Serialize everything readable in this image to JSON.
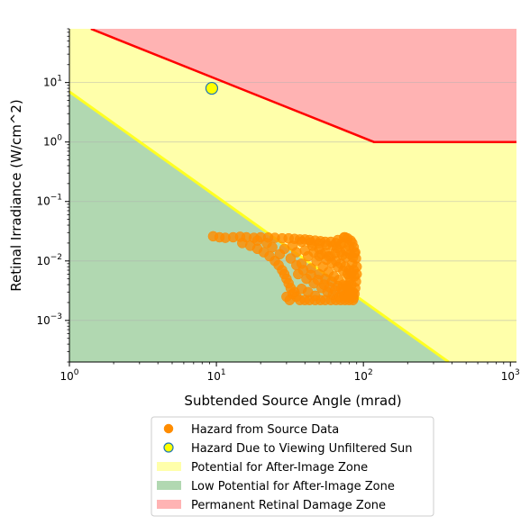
{
  "chart_data": {
    "type": "scatter",
    "title": "",
    "xlabel": "Subtended Source Angle (mrad)",
    "ylabel": "Retinal Irradiance (W/cm^2)",
    "xscale": "log",
    "yscale": "log",
    "xlim": [
      1,
      1100
    ],
    "ylim": [
      0.0002,
      80
    ],
    "grid": "horizontal",
    "legend_position": "bottom-center",
    "x_ticks": [
      {
        "value": 1,
        "base": "10",
        "exp": "0"
      },
      {
        "value": 10,
        "base": "10",
        "exp": "1"
      },
      {
        "value": 100,
        "base": "10",
        "exp": "2"
      },
      {
        "value": 1000,
        "base": "10",
        "exp": "3"
      }
    ],
    "y_ticks": [
      {
        "value": 0.001,
        "base": "10",
        "exp": "−3"
      },
      {
        "value": 0.01,
        "base": "10",
        "exp": "−2"
      },
      {
        "value": 0.1,
        "base": "10",
        "exp": "−1"
      },
      {
        "value": 1,
        "base": "10",
        "exp": "0"
      },
      {
        "value": 10,
        "base": "10",
        "exp": "1"
      }
    ],
    "zones": [
      {
        "name": "Potential for After-Image Zone",
        "color": "#ffffaa",
        "region": "everything"
      },
      {
        "name": "Low Potential for After-Image Zone",
        "color": "#b1d8b1",
        "region": "below-boundary"
      },
      {
        "name": "Permanent Retinal Damage Zone",
        "color": "#ffb3b3",
        "region": "above-damage-line"
      }
    ],
    "boundary_line": {
      "color": "#ffff22",
      "points": [
        [
          1,
          7
        ],
        [
          380,
          0.0002
        ]
      ]
    },
    "damage_line": {
      "color": "#ff0000",
      "points": [
        [
          1.4,
          80
        ],
        [
          118,
          1
        ],
        [
          1100,
          1
        ]
      ]
    },
    "series": [
      {
        "name": "Hazard from Source Data",
        "marker_color": "#ff8c00",
        "marker_edge": "#ff8c00",
        "points": [
          [
            9.5,
            0.026
          ],
          [
            10.5,
            0.025
          ],
          [
            11.5,
            0.0245
          ],
          [
            13,
            0.025
          ],
          [
            14.5,
            0.0255
          ],
          [
            16,
            0.025
          ],
          [
            18,
            0.0245
          ],
          [
            20,
            0.025
          ],
          [
            22.5,
            0.0248
          ],
          [
            25,
            0.0245
          ],
          [
            28,
            0.024
          ],
          [
            31,
            0.024
          ],
          [
            34,
            0.0235
          ],
          [
            37,
            0.023
          ],
          [
            40,
            0.023
          ],
          [
            43,
            0.0225
          ],
          [
            47,
            0.022
          ],
          [
            51,
            0.0215
          ],
          [
            55,
            0.021
          ],
          [
            60,
            0.021
          ],
          [
            65,
            0.02
          ],
          [
            70,
            0.019
          ],
          [
            75,
            0.025
          ],
          [
            78,
            0.024
          ],
          [
            15,
            0.02
          ],
          [
            17,
            0.018
          ],
          [
            19,
            0.016
          ],
          [
            21,
            0.014
          ],
          [
            23,
            0.012
          ],
          [
            25,
            0.01
          ],
          [
            26.5,
            0.0085
          ],
          [
            28,
            0.007
          ],
          [
            29,
            0.006
          ],
          [
            30,
            0.005
          ],
          [
            31,
            0.0042
          ],
          [
            32,
            0.0035
          ],
          [
            33,
            0.0028
          ],
          [
            35,
            0.0025
          ],
          [
            37,
            0.0022
          ],
          [
            40,
            0.0022
          ],
          [
            43,
            0.0022
          ],
          [
            47,
            0.0022
          ],
          [
            51,
            0.0022
          ],
          [
            55,
            0.0022
          ],
          [
            60,
            0.0022
          ],
          [
            65,
            0.0022
          ],
          [
            70,
            0.0022
          ],
          [
            75,
            0.0022
          ],
          [
            80,
            0.0022
          ],
          [
            85,
            0.0022
          ],
          [
            30,
            0.0025
          ],
          [
            34,
            0.003
          ],
          [
            31.5,
            0.0022
          ],
          [
            82,
            0.022
          ],
          [
            84,
            0.02
          ],
          [
            86,
            0.017
          ],
          [
            88,
            0.014
          ],
          [
            89,
            0.011
          ],
          [
            90,
            0.008
          ],
          [
            90,
            0.006
          ],
          [
            89,
            0.0045
          ],
          [
            88,
            0.0035
          ],
          [
            87,
            0.0028
          ],
          [
            86,
            0.0024
          ],
          [
            85,
            0.003
          ],
          [
            45,
            0.018
          ],
          [
            50,
            0.016
          ],
          [
            55,
            0.014
          ],
          [
            60,
            0.012
          ],
          [
            65,
            0.01
          ],
          [
            70,
            0.009
          ],
          [
            75,
            0.008
          ],
          [
            80,
            0.007
          ],
          [
            42,
            0.012
          ],
          [
            48,
            0.01
          ],
          [
            53,
            0.008
          ],
          [
            58,
            0.0065
          ],
          [
            63,
            0.0055
          ],
          [
            68,
            0.0048
          ],
          [
            73,
            0.004
          ],
          [
            78,
            0.0035
          ],
          [
            83,
            0.004
          ],
          [
            38,
            0.009
          ],
          [
            44,
            0.0075
          ],
          [
            50,
            0.006
          ],
          [
            55,
            0.005
          ],
          [
            61,
            0.0045
          ],
          [
            67,
            0.0038
          ],
          [
            72,
            0.003
          ],
          [
            77,
            0.0028
          ],
          [
            36,
            0.006
          ],
          [
            41,
            0.005
          ],
          [
            46,
            0.0042
          ],
          [
            52,
            0.0035
          ],
          [
            57,
            0.003
          ],
          [
            62,
            0.0027
          ],
          [
            69,
            0.0025
          ],
          [
            74,
            0.0026
          ],
          [
            79,
            0.0025
          ],
          [
            35,
            0.014
          ],
          [
            40,
            0.015
          ],
          [
            46,
            0.014
          ],
          [
            52,
            0.013
          ],
          [
            58,
            0.012
          ],
          [
            64,
            0.0135
          ],
          [
            70,
            0.014
          ],
          [
            76,
            0.015
          ],
          [
            81,
            0.013
          ],
          [
            84,
            0.009
          ],
          [
            86,
            0.007
          ],
          [
            87,
            0.0055
          ],
          [
            82,
            0.005
          ],
          [
            80,
            0.0055
          ],
          [
            76,
            0.0115
          ],
          [
            72,
            0.0125
          ],
          [
            66,
            0.0165
          ],
          [
            62,
            0.018
          ],
          [
            56,
            0.0185
          ],
          [
            50,
            0.0195
          ],
          [
            44,
            0.0205
          ],
          [
            38,
            0.021
          ],
          [
            33,
            0.018
          ],
          [
            29,
            0.016
          ],
          [
            27,
            0.013
          ],
          [
            24,
            0.017
          ],
          [
            22,
            0.02
          ],
          [
            19,
            0.022
          ],
          [
            32,
            0.011
          ],
          [
            35,
            0.0085
          ],
          [
            39,
            0.007
          ],
          [
            44,
            0.0058
          ],
          [
            49,
            0.0048
          ],
          [
            54,
            0.004
          ],
          [
            59,
            0.0036
          ],
          [
            64,
            0.0032
          ],
          [
            71,
            0.0034
          ],
          [
            76,
            0.0038
          ],
          [
            81,
            0.0032
          ],
          [
            84,
            0.0026
          ],
          [
            47,
            0.0026
          ],
          [
            42,
            0.003
          ],
          [
            38,
            0.0034
          ],
          [
            50,
            0.0122
          ],
          [
            56,
            0.0105
          ],
          [
            61,
            0.0092
          ],
          [
            67,
            0.0079
          ],
          [
            73,
            0.0068
          ],
          [
            78,
            0.006
          ],
          [
            83,
            0.0062
          ],
          [
            85,
            0.0115
          ],
          [
            87,
            0.0135
          ],
          [
            80,
            0.018
          ],
          [
            73,
            0.02
          ],
          [
            67,
            0.0225
          ],
          [
            74,
            0.025
          ],
          [
            78,
            0.0038
          ]
        ]
      },
      {
        "name": "Hazard Due to Viewing Unfiltered Sun",
        "marker_color": "#ffff00",
        "marker_edge": "#1f77b4",
        "points": [
          [
            9.3,
            8
          ]
        ]
      }
    ]
  }
}
